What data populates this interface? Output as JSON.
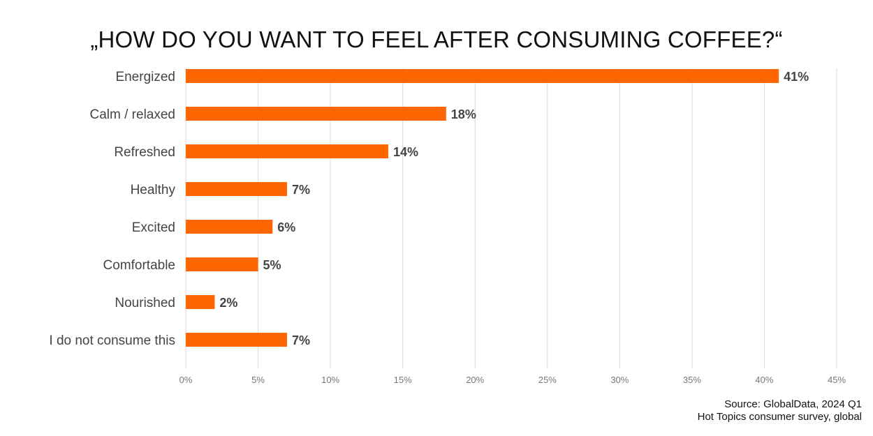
{
  "title": "„HOW DO YOU WANT TO FEEL AFTER CONSUMING COFFEE?“",
  "source": {
    "line1": "Source: GlobalData, 2024 Q1",
    "line2": "Hot Topics consumer survey, global"
  },
  "colors": {
    "bar": "#ff6600",
    "grid": "#d9d9d9",
    "text": "#444444"
  },
  "chart_data": {
    "type": "bar",
    "orientation": "horizontal",
    "title": "„HOW DO YOU WANT TO FEEL AFTER CONSUMING COFFEE?“",
    "categories": [
      "Energized",
      "Calm / relaxed",
      "Refreshed",
      "Healthy",
      "Excited",
      "Comfortable",
      "Nourished",
      "I do not consume this"
    ],
    "values": [
      41,
      18,
      14,
      7,
      6,
      5,
      2,
      7
    ],
    "value_labels": [
      "41%",
      "18%",
      "14%",
      "7%",
      "6%",
      "5%",
      "2%",
      "7%"
    ],
    "xlim": [
      0,
      45
    ],
    "xticks": [
      0,
      5,
      10,
      15,
      20,
      25,
      30,
      35,
      40,
      45
    ],
    "xtick_labels": [
      "0%",
      "5%",
      "10%",
      "15%",
      "20%",
      "25%",
      "30%",
      "35%",
      "40%",
      "45%"
    ],
    "xlabel": "",
    "ylabel": "",
    "grid": true
  }
}
